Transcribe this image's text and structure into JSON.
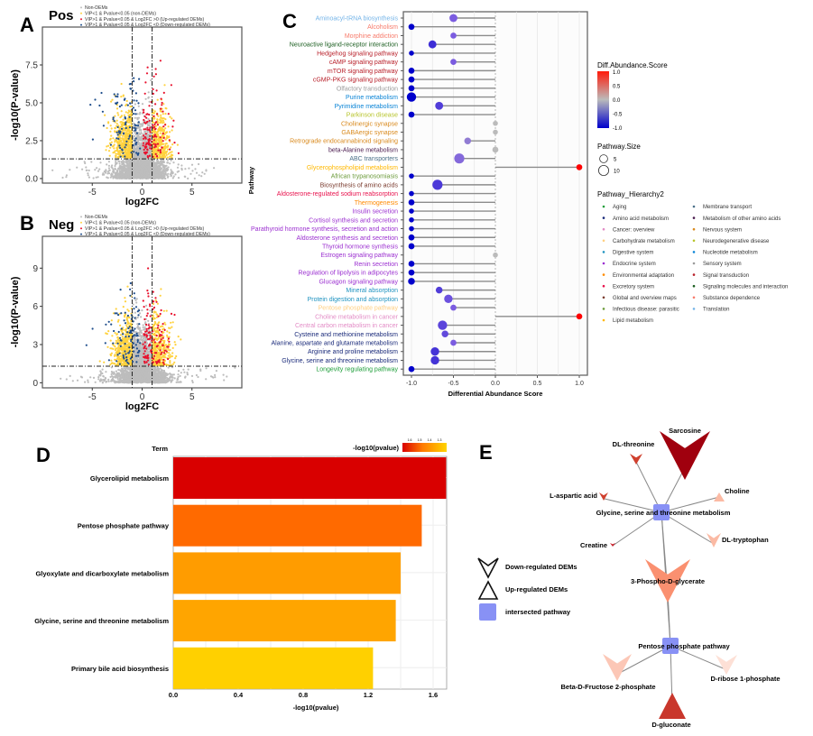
{
  "chart_data": [
    {
      "panel": "A",
      "type": "scatter",
      "title": "Pos",
      "xlabel": "log2FC",
      "ylabel": "-log10(P-value)",
      "xlim": [
        -10,
        10
      ],
      "ylim": [
        -0.3,
        10
      ],
      "xticks": [
        "-5",
        "0",
        "5"
      ],
      "xtick_values": [
        -5,
        0,
        5
      ],
      "yticks": [
        "0.0",
        "2.5",
        "5.0",
        "7.5"
      ],
      "ytick_values": [
        0,
        2.5,
        5,
        7.5
      ],
      "thresholds": {
        "log2fc": [
          -1,
          1
        ],
        "neglog10p": 1.3
      },
      "legend": [
        {
          "label": "Non-DEMs",
          "color": "#bdbdbd"
        },
        {
          "label": "VIP<1 & Pvalue<0.05 (non-DEMs)",
          "color": "#ffd23f"
        },
        {
          "label": "VIP>1 & Pvalue<0.05 & Log2FC >0 (Up-regulated DEMs)",
          "color": "#e8112d"
        },
        {
          "label": "VIP>1 & Pvalue<0.05 & Log2FC <0 (Down-regulated DEMs)",
          "color": "#1f4e8c"
        }
      ]
    },
    {
      "panel": "B",
      "type": "scatter",
      "title": "Neg",
      "xlabel": "log2FC",
      "ylabel": "-log10(P-value)",
      "xlim": [
        -10,
        10
      ],
      "ylim": [
        -0.4,
        11.5
      ],
      "xticks": [
        "-5",
        "0",
        "5"
      ],
      "xtick_values": [
        -5,
        0,
        5
      ],
      "yticks": [
        "0",
        "3",
        "6",
        "9"
      ],
      "ytick_values": [
        0,
        3,
        6,
        9
      ],
      "thresholds": {
        "log2fc": [
          -1,
          1
        ],
        "neglog10p": 1.3
      },
      "legend": [
        {
          "label": "Non-DEMs",
          "color": "#bdbdbd"
        },
        {
          "label": "VIP<1 & Pvalue<0.05 (non-DEMs)",
          "color": "#ffd23f"
        },
        {
          "label": "VIP>1 & Pvalue<0.05 & Log2FC >0 (Up-regulated DEMs)",
          "color": "#e8112d"
        },
        {
          "label": "VIP>1 & Pvalue<0.05 & Log2FC <0 (Down-regulated DEMs)",
          "color": "#1f4e8c"
        }
      ]
    },
    {
      "panel": "C",
      "type": "scatter",
      "subtype": "lollipop",
      "xlabel": "Differential Abundance Score",
      "ylabel": "Pathway",
      "xlim": [
        -1.05,
        1.1
      ],
      "xticks": [
        "-1.0",
        "-0.5",
        "0.0",
        "0.5",
        "1.0"
      ],
      "xtick_values": [
        -1,
        -0.5,
        0,
        0.5,
        1
      ],
      "color_legend": {
        "title": "Diff.Abundance.Score",
        "ticks": [
          "1.0",
          "0.5",
          "0.0",
          "-0.5",
          "-1.0"
        ],
        "low": "#0000cc",
        "mid": "#bbbbbb",
        "high": "#ff0000"
      },
      "size_legend": {
        "title": "Pathway.Size",
        "values": [
          5,
          10
        ],
        "labels": [
          "5",
          "10"
        ]
      },
      "hierarchy_legend": {
        "title": "Pathway_Hierarchy2",
        "items": [
          {
            "label": "Aging",
            "color": "#1e9e3a"
          },
          {
            "label": "Amino acid metabolism",
            "color": "#1a2a7a"
          },
          {
            "label": "Cancer: overview",
            "color": "#e38cc6"
          },
          {
            "label": "Carbohydrate metabolism",
            "color": "#ffcf80"
          },
          {
            "label": "Digestive system",
            "color": "#1f93c0"
          },
          {
            "label": "Endocrine system",
            "color": "#9b2fd0"
          },
          {
            "label": "Environmental adaptation",
            "color": "#ff8a00"
          },
          {
            "label": "Excretory system",
            "color": "#e8124d"
          },
          {
            "label": "Global and overview maps",
            "color": "#7a3b2e"
          },
          {
            "label": "Infectious disease: parasitic",
            "color": "#6b9a3a"
          },
          {
            "label": "Lipid metabolism",
            "color": "#ffb800"
          },
          {
            "label": "Membrane transport",
            "color": "#4a7088"
          },
          {
            "label": "Metabolism of other amino acids",
            "color": "#4b1c4f"
          },
          {
            "label": "Nervous system",
            "color": "#d98a1e"
          },
          {
            "label": "Neurodegenerative disease",
            "color": "#b7c42b"
          },
          {
            "label": "Nucleotide metabolism",
            "color": "#0a84d6"
          },
          {
            "label": "Sensory system",
            "color": "#9a9a9a"
          },
          {
            "label": "Signal transduction",
            "color": "#b8202a"
          },
          {
            "label": "Signaling molecules and interaction",
            "color": "#1b5e20"
          },
          {
            "label": "Substance dependence",
            "color": "#f77a6a"
          },
          {
            "label": "Translation",
            "color": "#74b4e8"
          }
        ]
      },
      "pathways": [
        {
          "name": "Aminoacyl-tRNA biosynthesis",
          "score": -0.5,
          "size": 5,
          "hierarchy": "Translation"
        },
        {
          "name": "Alcoholism",
          "score": -1.0,
          "size": 2,
          "hierarchy": "Substance dependence"
        },
        {
          "name": "Morphine addiction",
          "score": -0.5,
          "size": 2,
          "hierarchy": "Substance dependence"
        },
        {
          "name": "Neuroactive ligand-receptor interaction",
          "score": -0.75,
          "size": 5,
          "hierarchy": "Signaling molecules and interaction"
        },
        {
          "name": "Hedgehog signaling pathway",
          "score": -1.0,
          "size": 1,
          "hierarchy": "Signal transduction"
        },
        {
          "name": "cAMP signaling pathway",
          "score": -0.5,
          "size": 2,
          "hierarchy": "Signal transduction"
        },
        {
          "name": "mTOR signaling pathway",
          "score": -1.0,
          "size": 2,
          "hierarchy": "Signal transduction"
        },
        {
          "name": "cGMP-PKG signaling pathway",
          "score": -1.0,
          "size": 2,
          "hierarchy": "Signal transduction"
        },
        {
          "name": "Olfactory transduction",
          "score": -1.0,
          "size": 2,
          "hierarchy": "Sensory system"
        },
        {
          "name": "Purine metabolism",
          "score": -1.0,
          "size": 8,
          "hierarchy": "Nucleotide metabolism"
        },
        {
          "name": "Pyrimidine metabolism",
          "score": -0.67,
          "size": 5,
          "hierarchy": "Nucleotide metabolism"
        },
        {
          "name": "Parkinson disease",
          "score": -1.0,
          "size": 2,
          "hierarchy": "Neurodegenerative disease"
        },
        {
          "name": "Cholinergic synapse",
          "score": 0.0,
          "size": 1,
          "hierarchy": "Nervous system"
        },
        {
          "name": "GABAergic synapse",
          "score": 0.0,
          "size": 1,
          "hierarchy": "Nervous system"
        },
        {
          "name": "Retrograde endocannabinoid signaling",
          "score": -0.33,
          "size": 3,
          "hierarchy": "Nervous system"
        },
        {
          "name": "beta-Alanine metabolism",
          "score": 0.0,
          "size": 2,
          "hierarchy": "Metabolism of other amino acids"
        },
        {
          "name": "ABC transporters",
          "score": -0.43,
          "size": 10,
          "hierarchy": "Membrane transport"
        },
        {
          "name": "Glycerophospholipid metabolism",
          "score": 1.0,
          "size": 2,
          "hierarchy": "Lipid metabolism"
        },
        {
          "name": "African trypanosomiasis",
          "score": -1.0,
          "size": 1,
          "hierarchy": "Infectious disease: parasitic"
        },
        {
          "name": "Biosynthesis of amino acids",
          "score": -0.69,
          "size": 10,
          "hierarchy": "Global and overview maps"
        },
        {
          "name": "Aldosterone-regulated sodium reabsorption",
          "score": -1.0,
          "size": 1,
          "hierarchy": "Excretory system"
        },
        {
          "name": "Thermogenesis",
          "score": -1.0,
          "size": 2,
          "hierarchy": "Environmental adaptation"
        },
        {
          "name": "Insulin secretion",
          "score": -1.0,
          "size": 1,
          "hierarchy": "Endocrine system"
        },
        {
          "name": "Cortisol synthesis and secretion",
          "score": -1.0,
          "size": 1,
          "hierarchy": "Endocrine system"
        },
        {
          "name": "Parathyroid hormone synthesis, secretion and action",
          "score": -1.0,
          "size": 1,
          "hierarchy": "Endocrine system"
        },
        {
          "name": "Aldosterone synthesis and secretion",
          "score": -1.0,
          "size": 2,
          "hierarchy": "Endocrine system"
        },
        {
          "name": "Thyroid hormone synthesis",
          "score": -1.0,
          "size": 2,
          "hierarchy": "Endocrine system"
        },
        {
          "name": "Estrogen signaling pathway",
          "score": 0.0,
          "size": 1,
          "hierarchy": "Endocrine system"
        },
        {
          "name": "Renin secretion",
          "score": -1.0,
          "size": 2,
          "hierarchy": "Endocrine system"
        },
        {
          "name": "Regulation of lipolysis in adipocytes",
          "score": -1.0,
          "size": 2,
          "hierarchy": "Endocrine system"
        },
        {
          "name": "Glucagon signaling pathway",
          "score": -1.0,
          "size": 3,
          "hierarchy": "Endocrine system"
        },
        {
          "name": "Mineral absorption",
          "score": -0.67,
          "size": 3,
          "hierarchy": "Digestive system"
        },
        {
          "name": "Protein digestion and absorption",
          "score": -0.56,
          "size": 6,
          "hierarchy": "Digestive system"
        },
        {
          "name": "Pentose phosphate pathway",
          "score": -0.5,
          "size": 2,
          "hierarchy": "Carbohydrate metabolism"
        },
        {
          "name": "Choline metabolism in cancer",
          "score": 1.0,
          "size": 2,
          "hierarchy": "Cancer: overview"
        },
        {
          "name": "Central carbon metabolism in cancer",
          "score": -0.63,
          "size": 8,
          "hierarchy": "Cancer: overview"
        },
        {
          "name": "Cysteine and methionine metabolism",
          "score": -0.6,
          "size": 3,
          "hierarchy": "Amino acid metabolism"
        },
        {
          "name": "Alanine, aspartate and glutamate metabolism",
          "score": -0.5,
          "size": 2,
          "hierarchy": "Amino acid metabolism"
        },
        {
          "name": "Arginine and proline metabolism",
          "score": -0.72,
          "size": 6,
          "hierarchy": "Amino acid metabolism"
        },
        {
          "name": "Glycine, serine and threonine metabolism",
          "score": -0.72,
          "size": 6,
          "hierarchy": "Amino acid metabolism"
        },
        {
          "name": "Longevity regulating pathway",
          "score": -1.0,
          "size": 2,
          "hierarchy": "Aging"
        }
      ]
    },
    {
      "panel": "D",
      "type": "bar",
      "orientation": "horizontal",
      "ylabel": "Term",
      "xlabel": "-log10(pvalue)",
      "xlim": [
        0,
        1.68
      ],
      "xticks": [
        "0.0",
        "0.4",
        "0.8",
        "1.2",
        "1.6"
      ],
      "xtick_values": [
        0,
        0.4,
        0.8,
        1.2,
        1.6
      ],
      "categories": [
        "Glycerolipid metabolism",
        "Pentose phosphate pathway",
        "Glyoxylate and dicarboxylate metabolism",
        "Glycine, serine and threonine metabolism",
        "Primary bile acid biosynthesis"
      ],
      "values": [
        1.68,
        1.53,
        1.4,
        1.37,
        1.23
      ],
      "colors": [
        "#d90000",
        "#ff6a00",
        "#ff9c00",
        "#ffa500",
        "#ffd000"
      ],
      "color_legend": {
        "title": "-log10(pvalue)",
        "ticks": [
          "1.6",
          "1.5",
          "1.4",
          "1.3"
        ]
      }
    },
    {
      "panel": "E",
      "type": "network",
      "hubs": [
        {
          "id": "gst",
          "label": "Glycine, serine and threonine metabolism",
          "color": "#8891f5"
        },
        {
          "id": "ppp",
          "label": "Pentose phosphate pathway",
          "color": "#8891f5"
        }
      ],
      "metabolites": [
        {
          "label": "Sarcosine",
          "direction": "down",
          "color": "#a0000e",
          "links": [
            "gst"
          ]
        },
        {
          "label": "DL-threonine",
          "direction": "down",
          "color": "#d0402e",
          "links": [
            "gst"
          ]
        },
        {
          "label": "L-aspartic acid",
          "direction": "down",
          "color": "#d0402e",
          "links": [
            "gst"
          ]
        },
        {
          "label": "Choline",
          "direction": "up",
          "color": "#fbbaa4",
          "links": [
            "gst"
          ]
        },
        {
          "label": "Creatine",
          "direction": "down",
          "color": "#c8202a",
          "links": [
            "gst"
          ]
        },
        {
          "label": "DL-tryptophan",
          "direction": "down",
          "color": "#fbbaa4",
          "links": [
            "gst"
          ]
        },
        {
          "label": "3-Phospho-D-glycerate",
          "direction": "down",
          "color": "#fa9070",
          "links": [
            "gst",
            "ppp"
          ]
        },
        {
          "label": "Beta-D-Fructose 2-phosphate",
          "direction": "down",
          "color": "#fcc7b6",
          "links": [
            "ppp"
          ]
        },
        {
          "label": "D-ribose 1-phosphate",
          "direction": "down",
          "color": "#fde0d6",
          "links": [
            "ppp"
          ]
        },
        {
          "label": "D-gluconate",
          "direction": "up",
          "color": "#c9372c",
          "links": [
            "ppp"
          ]
        }
      ],
      "legend": [
        "Down-regulated DEMs",
        "Up-regulated DEMs",
        "intersected pathway"
      ]
    }
  ],
  "panel_letters": {
    "a": "A",
    "b": "B",
    "c": "C",
    "d": "D",
    "e": "E"
  }
}
